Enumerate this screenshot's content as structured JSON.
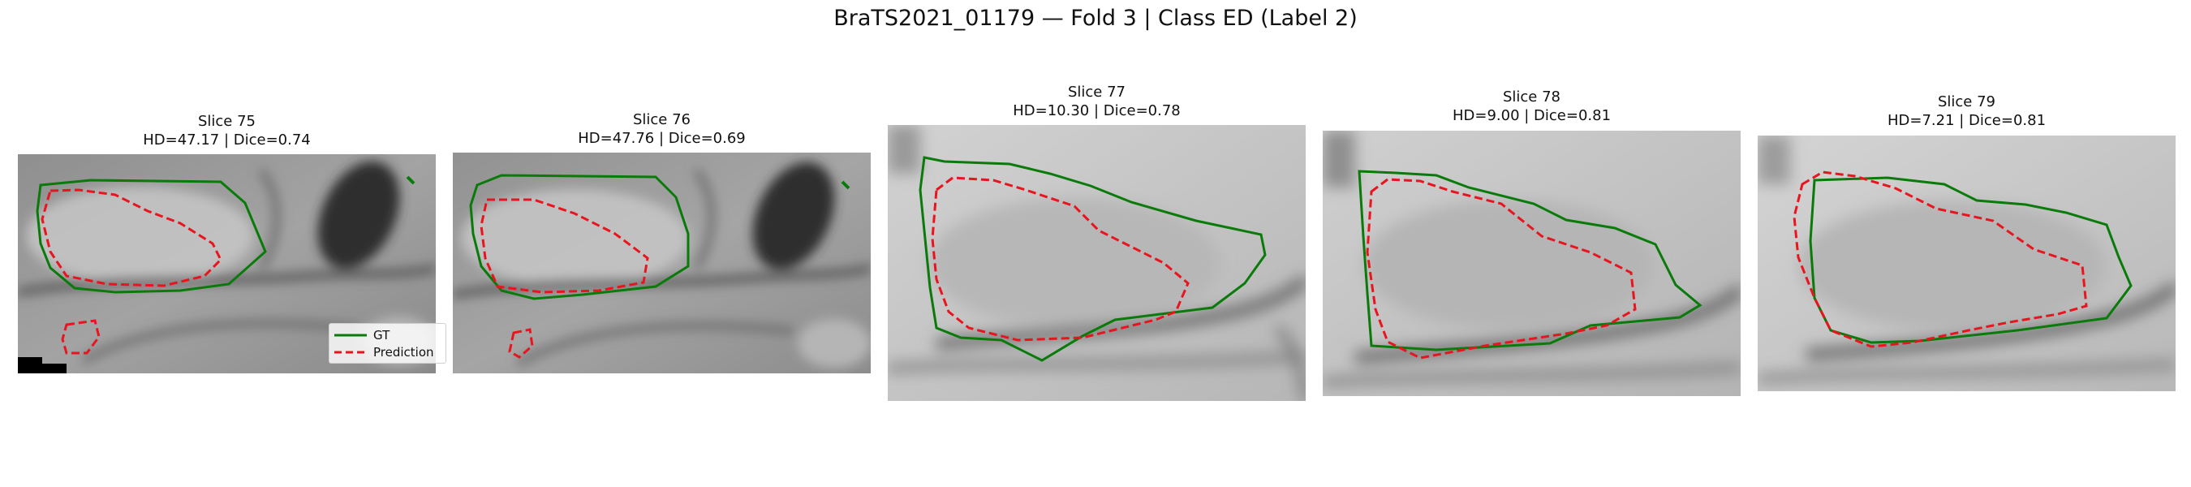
{
  "figure": {
    "title": "BraTS2021_01179 — Fold 3 | Class ED (Label 2)"
  },
  "colors": {
    "ground_truth": "#0a7a0a",
    "prediction": "#e8141e"
  },
  "panels": [
    {
      "slice": "Slice 75",
      "metrics": "HD=47.17 | Dice=0.74"
    },
    {
      "slice": "Slice 76",
      "metrics": "HD=47.76 | Dice=0.69"
    },
    {
      "slice": "Slice 77",
      "metrics": "HD=10.30 | Dice=0.78"
    },
    {
      "slice": "Slice 78",
      "metrics": "HD=9.00 | Dice=0.81"
    },
    {
      "slice": "Slice 79",
      "metrics": "HD=7.21 | Dice=0.81"
    }
  ],
  "legend": {
    "gt_label": "GT",
    "prediction_label": "Prediction"
  }
}
